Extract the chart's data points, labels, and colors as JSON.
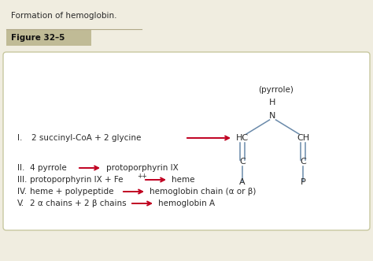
{
  "bg_color": "#f0ede0",
  "box_bg": "#ffffff",
  "border_color": "#c8c8a0",
  "text_color": "#2a2a2a",
  "arrow_color": "#c00020",
  "struct_color": "#6a8aaa",
  "title": "Figure 32–5",
  "caption": "Formation of hemoglobin.",
  "row1_roman": "I.",
  "row1_text": "2 succinyl-CoA + 2 glycine",
  "row2_roman": "II.",
  "row2_left": "4 pyrrole",
  "row2_right": "protoporphyrin IX",
  "row3_roman": "III.",
  "row3_left": "protoporphyrin IX + Fe",
  "row3_sup": "++",
  "row3_right": "heme",
  "row4_roman": "IV.",
  "row4_left": "heme + polypeptide",
  "row4_right": "hemoglobin chain (α or β)",
  "row5_roman": "V.",
  "row5_left": "2 α chains + 2 β chains",
  "row5_right": "hemoglobin A",
  "label_A": "A",
  "label_P": "P",
  "label_C1": "C",
  "label_C2": "C",
  "label_HC": "HC",
  "label_CH": "CH",
  "label_N": "N",
  "label_H": "H",
  "label_pyrrole": "(pyrrole)",
  "fig_bar_color": "#c0bb96",
  "fig_line_color": "#b0a888"
}
